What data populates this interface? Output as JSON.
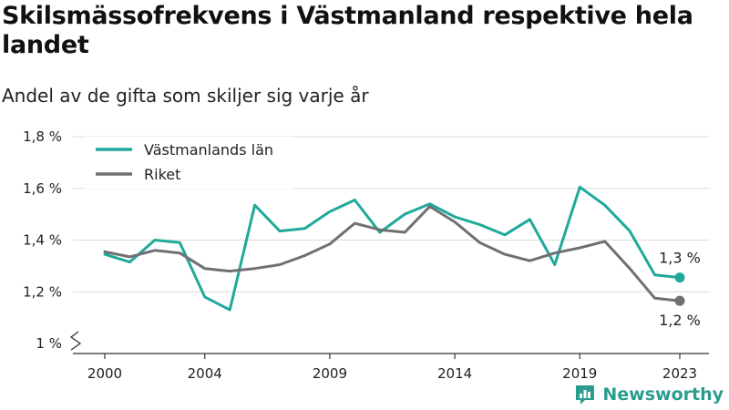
{
  "header": {
    "title": "Skilsmässofrekvens i Västmanland respektive hela landet",
    "subtitle": "Andel av de gifta som skiljer sig varje år"
  },
  "brand": {
    "name": "Newsworthy",
    "icon": "newsworthy-logo-icon",
    "color": "#2a9d8f"
  },
  "chart_data": {
    "type": "line",
    "x": [
      2000,
      2001,
      2002,
      2003,
      2004,
      2005,
      2006,
      2007,
      2008,
      2009,
      2010,
      2011,
      2012,
      2013,
      2014,
      2015,
      2016,
      2017,
      2018,
      2019,
      2020,
      2021,
      2022,
      2023
    ],
    "x_ticks": [
      "2000",
      "2004",
      "2009",
      "2014",
      "2019",
      "2023"
    ],
    "y_ticks": [
      "1 %",
      "1,2 %",
      "1,4 %",
      "1,6 %",
      "1,8 %"
    ],
    "ylim": [
      1.0,
      1.8
    ],
    "y_break": true,
    "grid": true,
    "legend_position": "top-left",
    "series": [
      {
        "name": "Västmanlands län",
        "color": "#1fa99a",
        "values": [
          1.345,
          1.315,
          1.4,
          1.39,
          1.18,
          1.13,
          1.535,
          1.435,
          1.445,
          1.51,
          1.555,
          1.43,
          1.5,
          1.54,
          1.49,
          1.46,
          1.42,
          1.48,
          1.305,
          1.605,
          1.535,
          1.435,
          1.265,
          1.255
        ],
        "end_label": "1,3 %"
      },
      {
        "name": "Riket",
        "color": "#707072",
        "values": [
          1.355,
          1.335,
          1.36,
          1.35,
          1.29,
          1.28,
          1.29,
          1.305,
          1.34,
          1.385,
          1.465,
          1.44,
          1.43,
          1.53,
          1.47,
          1.39,
          1.345,
          1.32,
          1.35,
          1.37,
          1.395,
          1.29,
          1.175,
          1.165
        ],
        "end_label": "1,2 %"
      }
    ]
  }
}
